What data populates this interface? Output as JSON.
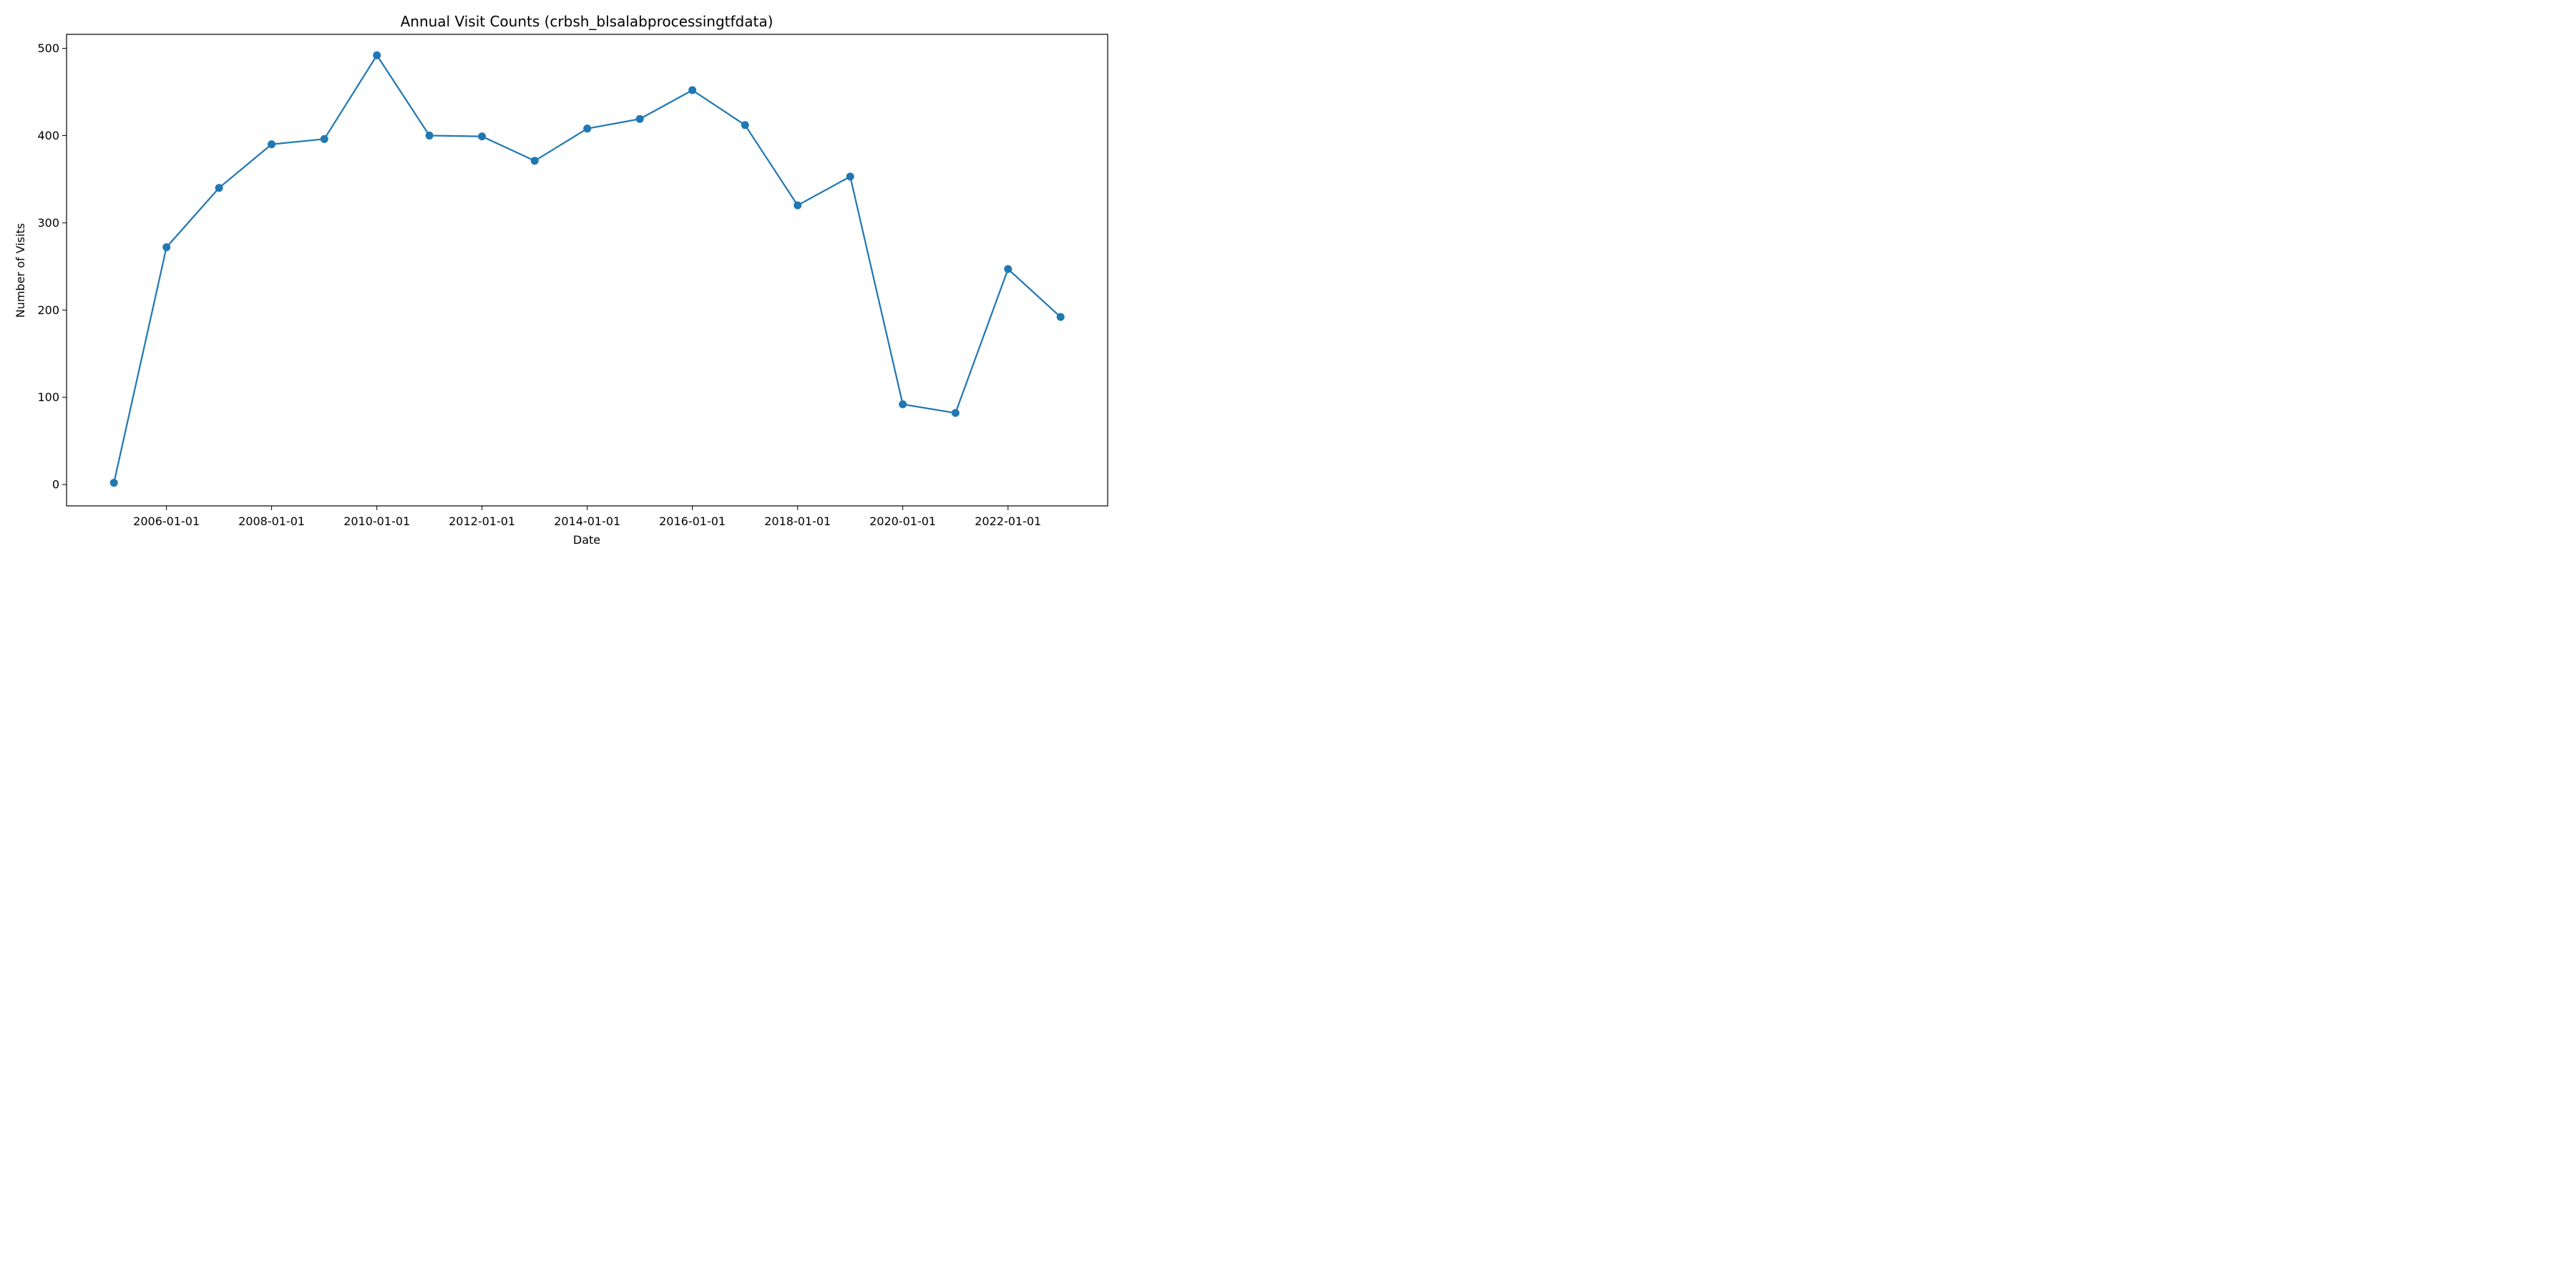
{
  "chart_data": {
    "type": "line",
    "title": "Annual Visit Counts (crbsh_blsalabprocessingtfdata)",
    "xlabel": "Date",
    "ylabel": "Number of Visits",
    "x_type": "date",
    "xlim": [
      "2004-02-07",
      "2023-11-24"
    ],
    "ylim": [
      -24.5,
      516
    ],
    "x_ticks": [
      "2006-01-01",
      "2008-01-01",
      "2010-01-01",
      "2012-01-01",
      "2014-01-01",
      "2016-01-01",
      "2018-01-01",
      "2020-01-01",
      "2022-01-01"
    ],
    "y_ticks": [
      0,
      100,
      200,
      300,
      400,
      500
    ],
    "grid": false,
    "legend": "none",
    "series": [
      {
        "color": "#1f77b4",
        "marker": "circle",
        "x": [
          "2005-01-01",
          "2006-01-01",
          "2007-01-01",
          "2008-01-01",
          "2009-01-01",
          "2010-01-01",
          "2011-01-01",
          "2012-01-01",
          "2013-01-01",
          "2014-01-01",
          "2015-01-01",
          "2016-01-01",
          "2017-01-01",
          "2018-01-01",
          "2019-01-01",
          "2020-01-01",
          "2021-01-01",
          "2022-01-01",
          "2023-01-01"
        ],
        "y": [
          2,
          272,
          340,
          390,
          396,
          492,
          400,
          399,
          371,
          408,
          419,
          452,
          412,
          320,
          353,
          92,
          82,
          247,
          192
        ]
      }
    ]
  }
}
